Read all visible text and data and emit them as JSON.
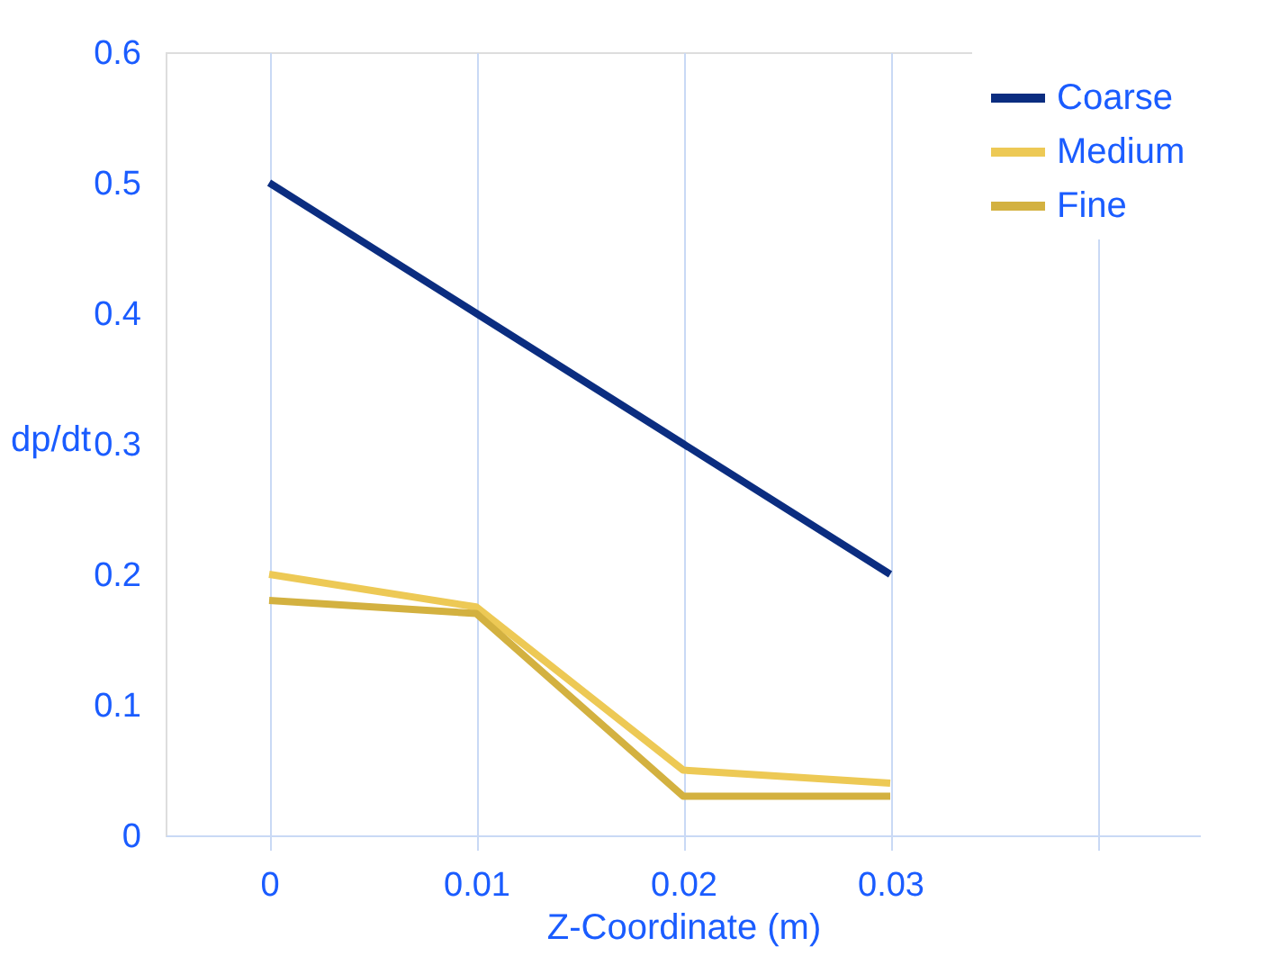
{
  "chart_data": {
    "type": "line",
    "xlabel": "Z-Coordinate (m)",
    "ylabel": "dp/dt",
    "categories": [
      "0",
      "0.01",
      "0.02",
      "0.03",
      null
    ],
    "series": [
      {
        "name": "Coarse",
        "color": "#0b2d80",
        "values": [
          0.5,
          0.4,
          0.3,
          0.2,
          null
        ]
      },
      {
        "name": "Medium",
        "color": "#edc955",
        "values": [
          0.2,
          0.175,
          0.05,
          0.04,
          null
        ]
      },
      {
        "name": "Fine",
        "color": "#d3b140",
        "values": [
          0.18,
          0.17,
          0.03,
          0.03,
          null
        ]
      }
    ],
    "ylim": [
      0,
      0.6
    ],
    "yticks": [
      0,
      0.1,
      0.2,
      0.3,
      0.4,
      0.5,
      0.6
    ],
    "grid": "x",
    "legend": "top right",
    "marker": "none",
    "line_style": "solid"
  }
}
